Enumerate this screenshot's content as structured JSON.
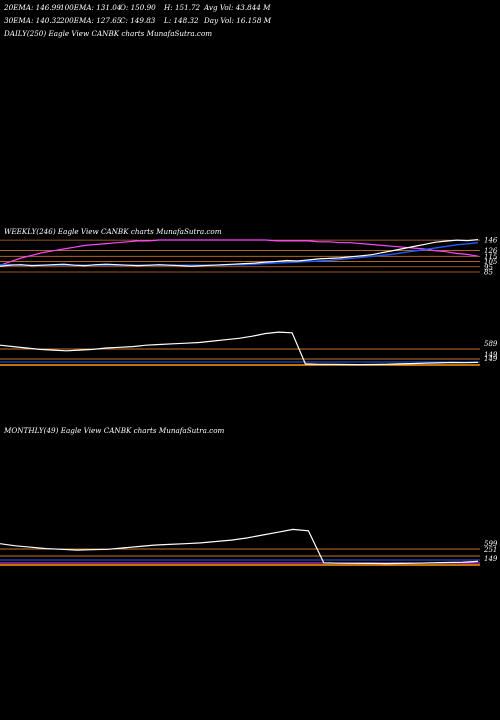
{
  "header": {
    "row1": [
      "20EMA: 146.99",
      "100EMA: 131.04",
      "O: 150.90",
      "H: 151.72",
      "Avg Vol: 43.844  M"
    ],
    "row2": [
      "30EMA: 140.32",
      "200EMA: 127.65",
      "C: 149.83",
      "L: 148.32",
      "Day Vol: 16.158  M"
    ]
  },
  "panels": {
    "daily": {
      "label": "DAILY(250) Eagle  View  CANBK charts MunafaSutra.com"
    },
    "weekly": {
      "label": "WEEKLY(246) Eagle  View  CANBK charts MunafaSutra.com"
    },
    "monthly": {
      "label": "MONTHLY(49) Eagle  View  CANBK charts MunafaSutra.com"
    }
  },
  "colors": {
    "background": "#000000",
    "price": "#ffffff",
    "ema_fast": "#1e5bff",
    "ema_slow": "#ff44ff",
    "levels": "#c8742a"
  },
  "chart_data": [
    {
      "type": "line",
      "title": "WEEKLY(246) Eagle  View  CANBK charts MunafaSutra.com",
      "y_tick_labels": [
        "146",
        "126",
        "115",
        "105",
        "95",
        "85"
      ],
      "series": [
        {
          "values": [
            96,
            98,
            99,
            97,
            98,
            99,
            100,
            98,
            97,
            99,
            100,
            99,
            98,
            97,
            98,
            99,
            98,
            97,
            96,
            97,
            98,
            99,
            100,
            101,
            102,
            104,
            105,
            107,
            106,
            108,
            110,
            111,
            112,
            114,
            116,
            118,
            122,
            126,
            130,
            134,
            138,
            142,
            144,
            146,
            145,
            147
          ]
        },
        {
          "values": [
            99,
            99,
            98,
            98,
            98,
            98,
            98,
            98,
            98,
            98,
            98,
            98,
            98,
            98,
            98,
            98,
            98,
            98,
            98,
            98,
            98,
            98,
            99,
            99,
            100,
            101,
            102,
            103,
            104,
            105,
            106,
            107,
            109,
            111,
            113,
            115,
            117,
            119,
            122,
            125,
            128,
            131,
            134,
            137,
            139,
            141
          ]
        },
        {
          "values": [
            128,
            124,
            120,
            117,
            114,
            112,
            110,
            108,
            106,
            105,
            104,
            103,
            102,
            101,
            101,
            100,
            100,
            100,
            100,
            100,
            100,
            100,
            100,
            100,
            100,
            100,
            101,
            101,
            101,
            101,
            102,
            102,
            103,
            103,
            104,
            105,
            106,
            107,
            108,
            109,
            110,
            112,
            113,
            115,
            116,
            118
          ]
        }
      ]
    },
    {
      "type": "line",
      "title": "",
      "y_tick_labels": [
        "589",
        "149",
        "149"
      ],
      "series": [
        {
          "values": [
            300,
            280,
            260,
            240,
            230,
            220,
            230,
            240,
            260,
            270,
            280,
            300,
            310,
            320,
            330,
            340,
            360,
            380,
            400,
            430,
            470,
            490,
            480,
            30,
            25,
            24,
            22,
            20,
            22,
            25,
            30,
            35,
            40,
            45,
            50,
            48,
            52
          ]
        }
      ]
    },
    {
      "type": "line",
      "title": "MONTHLY(49) Eagle  View  CANBK charts MunafaSutra.com",
      "y_tick_labels": [
        "599",
        "251",
        "149"
      ],
      "series": [
        {
          "values": [
            300,
            270,
            250,
            230,
            220,
            210,
            215,
            220,
            240,
            260,
            280,
            290,
            300,
            310,
            330,
            350,
            380,
            420,
            460,
            500,
            480,
            30,
            25,
            24,
            22,
            20,
            22,
            25,
            30,
            35,
            40,
            50
          ]
        }
      ]
    }
  ]
}
